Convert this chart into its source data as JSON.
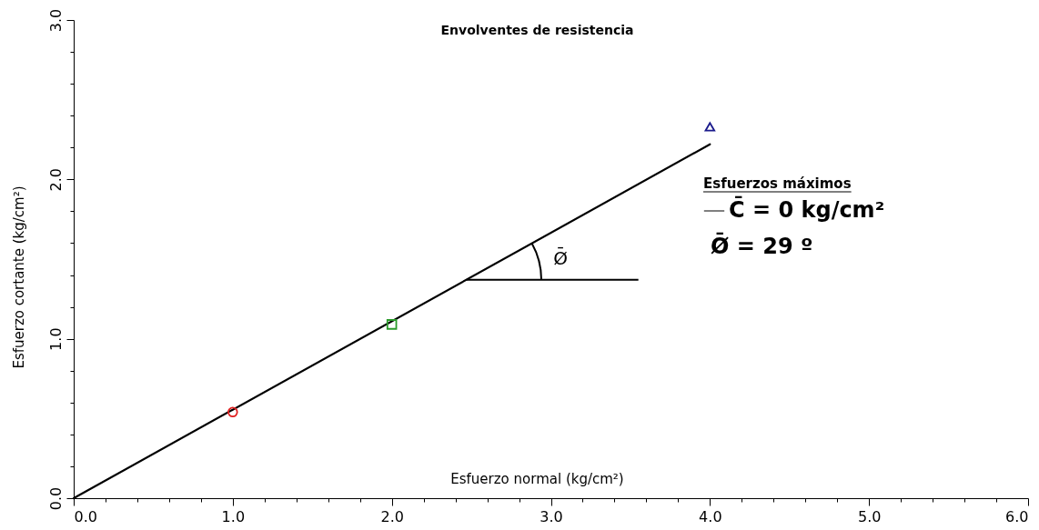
{
  "chart_data": {
    "type": "scatter",
    "title": "Envolventes de resistencia",
    "xlabel": "Esfuerzo normal (kg/cm²)",
    "ylabel": "Esfuerzo cortante (kg/cm²)",
    "legend_title": "Esfuerzos máximos",
    "legend": "right",
    "grid": false,
    "series": [
      {
        "type": "line",
        "name": "C̄ = 0 kg/cm²",
        "color": "#000000",
        "x": [
          0,
          4
        ],
        "values": [
          0,
          2.22
        ],
        "marker": "none"
      },
      {
        "x": [
          1
        ],
        "values": [
          0.54
        ],
        "color": "#e02020",
        "marker": "circle"
      },
      {
        "x": [
          2
        ],
        "values": [
          1.09
        ],
        "color": "#2a9a2a",
        "marker": "square"
      },
      {
        "x": [
          4
        ],
        "values": [
          2.33
        ],
        "color": "#1a1a8c",
        "marker": "triangle"
      }
    ],
    "annotations": [
      "Ø̄",
      "Ø̄ = 29 º"
    ],
    "xlim": [
      0,
      6
    ],
    "ylim": [
      0,
      3
    ],
    "xticks": [
      {
        "value": 0,
        "label": "0.0"
      },
      {
        "value": 0.2,
        "label": null
      },
      {
        "value": 0.4,
        "label": null
      },
      {
        "value": 0.6,
        "label": null
      },
      {
        "value": 0.8,
        "label": null
      },
      {
        "value": 1,
        "label": "1.0"
      },
      {
        "value": 1.2,
        "label": null
      },
      {
        "value": 1.4,
        "label": null
      },
      {
        "value": 1.6,
        "label": null
      },
      {
        "value": 1.8,
        "label": null
      },
      {
        "value": 2,
        "label": "2.0"
      },
      {
        "value": 2.2,
        "label": null
      },
      {
        "value": 2.4,
        "label": null
      },
      {
        "value": 2.6,
        "label": null
      },
      {
        "value": 2.8,
        "label": null
      },
      {
        "value": 3,
        "label": "3.0"
      },
      {
        "value": 3.2,
        "label": null
      },
      {
        "value": 3.4,
        "label": null
      },
      {
        "value": 3.6,
        "label": null
      },
      {
        "value": 3.8,
        "label": null
      },
      {
        "value": 4,
        "label": "4.0"
      },
      {
        "value": 4.2,
        "label": null
      },
      {
        "value": 4.4,
        "label": null
      },
      {
        "value": 4.6,
        "label": null
      },
      {
        "value": 4.8,
        "label": null
      },
      {
        "value": 5,
        "label": "5.0"
      },
      {
        "value": 5.2,
        "label": null
      },
      {
        "value": 5.4,
        "label": null
      },
      {
        "value": 5.6,
        "label": null
      },
      {
        "value": 5.8,
        "label": null
      },
      {
        "value": 6,
        "label": "6.0"
      }
    ],
    "yticks": [
      {
        "value": 0,
        "label": "0.0"
      },
      {
        "value": 0.2,
        "label": null
      },
      {
        "value": 0.4,
        "label": null
      },
      {
        "value": 0.6,
        "label": null
      },
      {
        "value": 0.8,
        "label": null
      },
      {
        "value": 1,
        "label": "1.0"
      },
      {
        "value": 1.2,
        "label": null
      },
      {
        "value": 1.4,
        "label": null
      },
      {
        "value": 1.6,
        "label": null
      },
      {
        "value": 1.8,
        "label": null
      },
      {
        "value": 2,
        "label": "2.0"
      },
      {
        "value": 2.2,
        "label": null
      },
      {
        "value": 2.4,
        "label": null
      },
      {
        "value": 2.6,
        "label": null
      },
      {
        "value": 2.8,
        "label": null
      },
      {
        "value": 3,
        "label": "3.0"
      }
    ]
  }
}
